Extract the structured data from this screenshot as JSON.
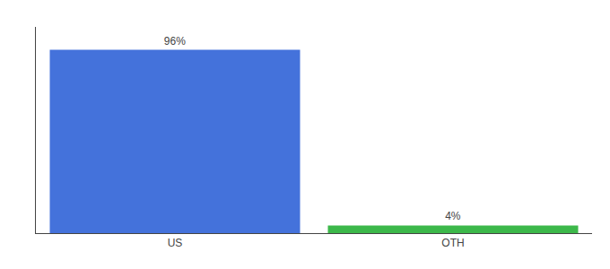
{
  "chart_data": {
    "type": "bar",
    "categories": [
      "US",
      "OTH"
    ],
    "values": [
      96,
      4
    ],
    "value_labels": [
      "96%",
      "4%"
    ],
    "colors": [
      "#4472db",
      "#3cb84a"
    ],
    "ylim": [
      0,
      108
    ],
    "grid": false,
    "data_labels": true,
    "tick_labels": "x"
  }
}
